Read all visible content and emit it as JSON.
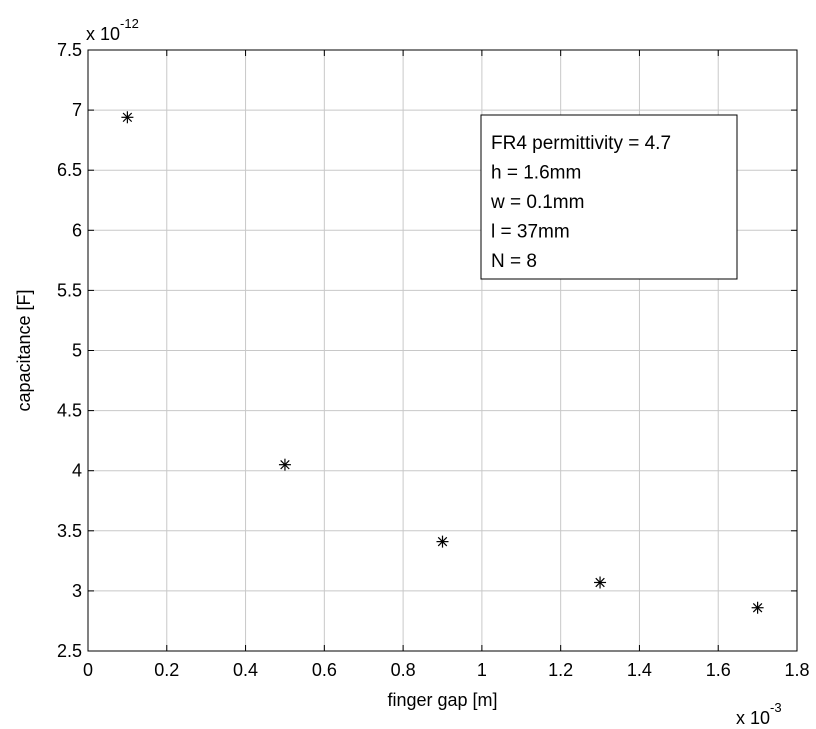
{
  "chart_data": {
    "type": "scatter",
    "xlabel": "finger gap [m]",
    "ylabel": "capacitance [F]",
    "x_multiplier_base": "x 10",
    "x_multiplier_exp": "-3",
    "y_multiplier_base": "x 10",
    "y_multiplier_exp": "-12",
    "xlim": [
      0,
      1.8
    ],
    "ylim": [
      2.5,
      7.5
    ],
    "x_ticks": [
      0,
      0.2,
      0.4,
      0.6,
      0.8,
      1.0,
      1.2,
      1.4,
      1.6,
      1.8
    ],
    "x_tick_labels": [
      "0",
      "0.2",
      "0.4",
      "0.6",
      "0.8",
      "1",
      "1.2",
      "1.4",
      "1.6",
      "1.8"
    ],
    "y_ticks": [
      2.5,
      3.0,
      3.5,
      4.0,
      4.5,
      5.0,
      5.5,
      6.0,
      6.5,
      7.0,
      7.5
    ],
    "y_tick_labels": [
      "2.5",
      "3",
      "3.5",
      "4",
      "4.5",
      "5",
      "5.5",
      "6",
      "6.5",
      "7",
      "7.5"
    ],
    "grid": true,
    "marker": "asterisk",
    "series": [
      {
        "x": [
          0.1,
          0.5,
          0.9,
          1.3,
          1.7
        ],
        "y": [
          6.94,
          4.05,
          3.41,
          3.07,
          2.86
        ]
      }
    ],
    "annotation_lines": [
      "FR4 permittivity = 4.7",
      "h = 1.6mm",
      "w = 0.1mm",
      "l = 37mm",
      "N = 8"
    ],
    "annotation_placement": "top-right"
  }
}
